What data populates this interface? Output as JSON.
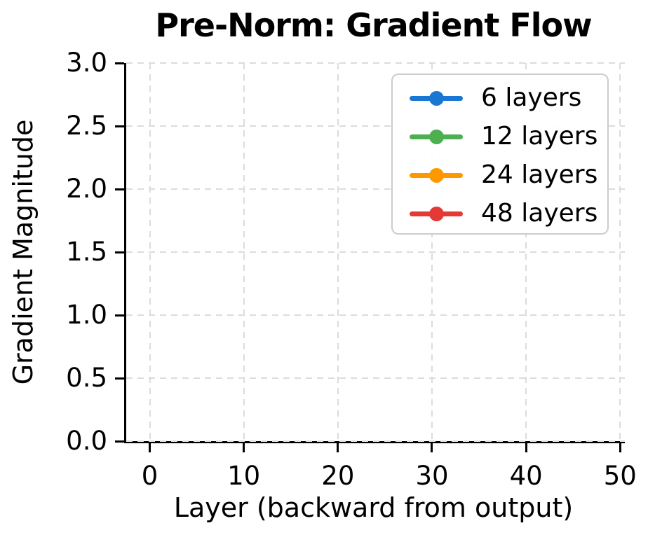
{
  "figure": {
    "title": "Pre-Norm: Gradient Flow",
    "xlabel": "Layer (backward from output)",
    "ylabel": "Gradient Magnitude"
  },
  "chart_data": {
    "type": "line",
    "title": "Pre-Norm: Gradient Flow",
    "xlabel": "Layer (backward from output)",
    "ylabel": "Gradient Magnitude",
    "xlim": [
      -2.5,
      50.5
    ],
    "ylim": [
      0,
      3
    ],
    "x_ticks": [
      0,
      10,
      20,
      30,
      40,
      50
    ],
    "y_ticks": [
      0.0,
      0.5,
      1.0,
      1.5,
      2.0,
      2.5,
      3.0
    ],
    "grid": "dashed, light gray, on",
    "spines": "left and bottom only",
    "legend_position": "upper right",
    "series": [
      {
        "name": "6 layers",
        "color": "#1976D2",
        "marker": "circle",
        "values": []
      },
      {
        "name": "12 layers",
        "color": "#4CAF50",
        "marker": "circle",
        "values": []
      },
      {
        "name": "24 layers",
        "color": "#FF9800",
        "marker": "circle",
        "values": []
      },
      {
        "name": "48 layers",
        "color": "#E53935",
        "marker": "circle",
        "values": []
      }
    ],
    "note": "plot area is empty - no data lines are drawn, only grid, axes and legend"
  },
  "colors": {
    "spine": "#000000",
    "grid": "#dcdcdc",
    "legend_border": "#cccccc",
    "text": "#000000",
    "background": "#ffffff"
  }
}
